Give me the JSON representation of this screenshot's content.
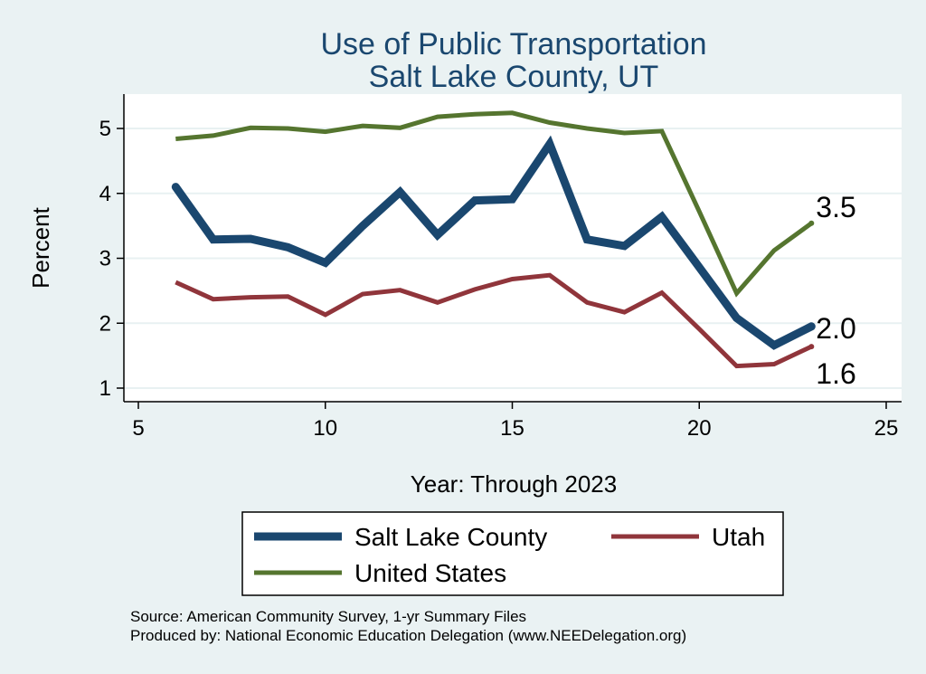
{
  "chart_data": {
    "type": "line",
    "title": "Use of Public Transportation",
    "subtitle": "Salt Lake County, UT",
    "xlabel": "Year: Through 2023",
    "ylabel": "Percent",
    "xlim": [
      5,
      25
    ],
    "ylim": [
      0.8,
      5.4
    ],
    "xticks": [
      5,
      10,
      15,
      20,
      25
    ],
    "yticks": [
      1,
      2,
      3,
      4,
      5
    ],
    "grid": true,
    "legend_position": "bottom",
    "x": [
      6,
      7,
      8,
      9,
      10,
      11,
      12,
      13,
      14,
      15,
      16,
      17,
      18,
      19,
      20,
      21,
      22,
      23
    ],
    "series": [
      {
        "name": "Salt Lake County",
        "color": "#1a476f",
        "values": [
          4.1,
          3.29,
          3.3,
          3.17,
          2.93,
          3.5,
          4.02,
          3.36,
          3.89,
          3.91,
          4.76,
          3.29,
          3.19,
          3.64,
          2.86,
          2.08,
          1.66,
          1.95
        ],
        "end_label": "2.0"
      },
      {
        "name": "Utah",
        "color": "#90353b",
        "values": [
          2.63,
          2.37,
          2.4,
          2.41,
          2.13,
          2.45,
          2.51,
          2.32,
          2.52,
          2.68,
          2.74,
          2.32,
          2.17,
          2.47,
          1.91,
          1.34,
          1.37,
          1.64
        ],
        "end_label": "1.6"
      },
      {
        "name": "United States",
        "color": "#55752f",
        "values": [
          4.84,
          4.89,
          5.01,
          5.0,
          4.95,
          5.04,
          5.01,
          5.18,
          5.22,
          5.24,
          5.09,
          5.0,
          4.93,
          4.96,
          3.72,
          2.46,
          3.12,
          3.54
        ],
        "end_label": "3.5"
      }
    ],
    "notes": [
      "Source: American Community Survey, 1-yr Summary Files",
      "Produced by: National Economic Education Delegation (www.NEEDelegation.org)"
    ]
  }
}
